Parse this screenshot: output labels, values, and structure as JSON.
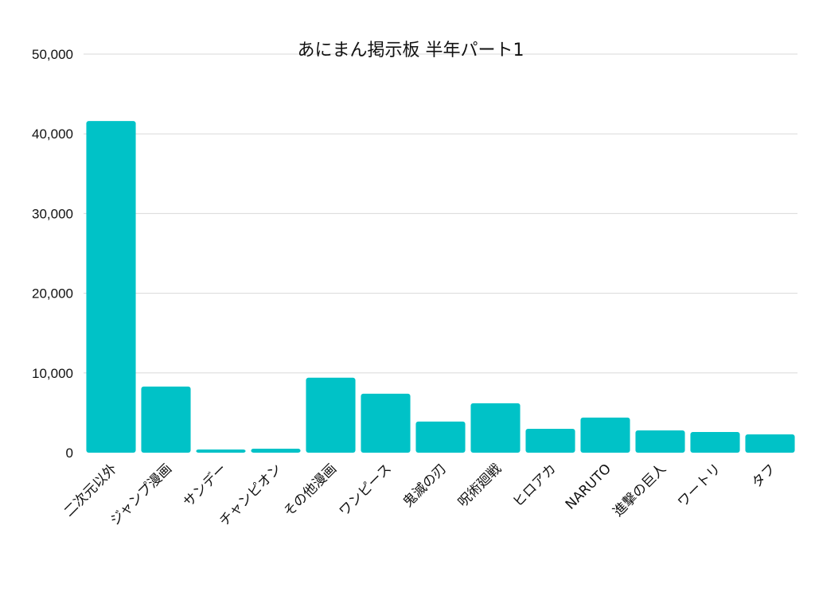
{
  "chart_data": {
    "type": "bar",
    "title": "あにまん掲示板 半年パート1",
    "xlabel": "",
    "ylabel": "",
    "categories": [
      "二次元以外",
      "ジャンプ漫画",
      "サンデー",
      "チャンピオン",
      "その他漫画",
      "ワンピース",
      "鬼滅の刃",
      "呪術廻戦",
      "ヒロアカ",
      "NARUTO",
      "進撃の巨人",
      "ワートリ",
      "タフ"
    ],
    "values": [
      41600,
      8300,
      400,
      500,
      9400,
      7400,
      3900,
      6200,
      3000,
      4400,
      2800,
      2600,
      2300
    ],
    "ylim": [
      0,
      50000
    ],
    "yticks": [
      "0",
      "10,000",
      "20,000",
      "30,000",
      "40,000",
      "50,000"
    ],
    "grid": true,
    "legend": "none",
    "bar_color": "#00c2c7"
  }
}
